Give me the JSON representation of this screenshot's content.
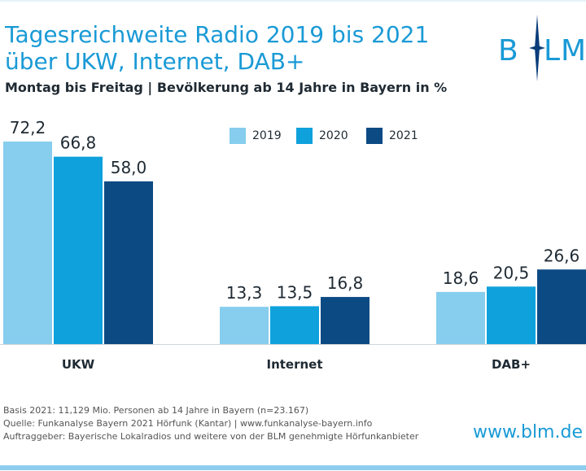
{
  "header": {
    "title_line1": "Tagesreichweite Radio 2019 bis 2021",
    "title_line2": "über UKW, Internet, DAB+",
    "subtitle": "Montag bis Freitag | Bevölkerung ab 14 Jahre in Bayern in %"
  },
  "logo": {
    "left": "B",
    "right": "LM",
    "color": "#1a9ad6",
    "accent_color": "#0a3d7a"
  },
  "chart_data": {
    "type": "bar",
    "title": "Tagesreichweite Radio 2019 bis 2021 über UKW, Internet, DAB+",
    "subtitle": "Montag bis Freitag | Bevölkerung ab 14 Jahre in Bayern in %",
    "categories": [
      "UKW",
      "Internet",
      "DAB+"
    ],
    "series": [
      {
        "name": "2019",
        "color": "#87cdee",
        "values": [
          72.2,
          13.3,
          18.6
        ],
        "labels": [
          "72,2",
          "13,3",
          "18,6"
        ]
      },
      {
        "name": "2020",
        "color": "#0fa1dc",
        "values": [
          66.8,
          13.5,
          20.5
        ],
        "labels": [
          "66,8",
          "13,5",
          "20,5"
        ]
      },
      {
        "name": "2021",
        "color": "#0c4a84",
        "values": [
          58.0,
          16.8,
          26.6
        ],
        "labels": [
          "58,0",
          "16,8",
          "26,6"
        ]
      }
    ],
    "ylim": [
      0,
      72.2
    ],
    "legend_position": "top-center",
    "grid": false
  },
  "footnotes": [
    "Basis 2021: 11,129 Mio. Personen ab 14 Jahre in Bayern (n=23.167)",
    "Quelle: Funkanalyse Bayern 2021 Hörfunk (Kantar) | www.funkanalyse-bayern.info",
    "Auftraggeber: Bayerische Lokalradios und weitere von der BLM genehmigte Hörfunkanbieter"
  ],
  "website": "www.blm.de",
  "colors": {
    "title": "#1a9ad6",
    "axis": "#cfd5da",
    "text": "#1f2a33"
  }
}
